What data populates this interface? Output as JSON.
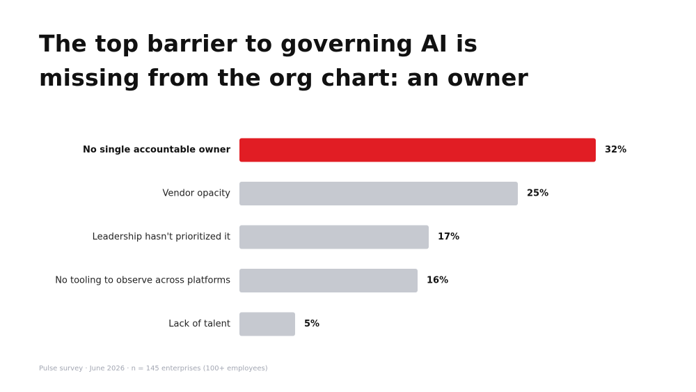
{
  "title_lines": [
    "The top barrier to governing AI is",
    "missing from the org chart: an owner"
  ],
  "footnote": "Pulse survey · June 2026 · n = 145 enterprises (100+ employees)",
  "colors": {
    "highlight": "#e11d24",
    "bar": "#c6c9d0",
    "label": "#222222",
    "value": "#111111"
  },
  "chart_data": {
    "type": "bar",
    "orientation": "horizontal",
    "title": "",
    "xlabel": "",
    "ylabel": "",
    "categories": [
      "No single accountable owner",
      "Vendor opacity",
      "Leadership hasn't prioritized it",
      "No tooling to observe across platforms",
      "Lack of talent"
    ],
    "values": [
      32,
      25,
      17,
      16,
      5
    ],
    "value_labels": [
      "32%",
      "25%",
      "17%",
      "16%",
      "5%"
    ],
    "highlight_index": 0,
    "xlim": [
      0,
      32
    ],
    "grid": false,
    "legend": "none"
  }
}
